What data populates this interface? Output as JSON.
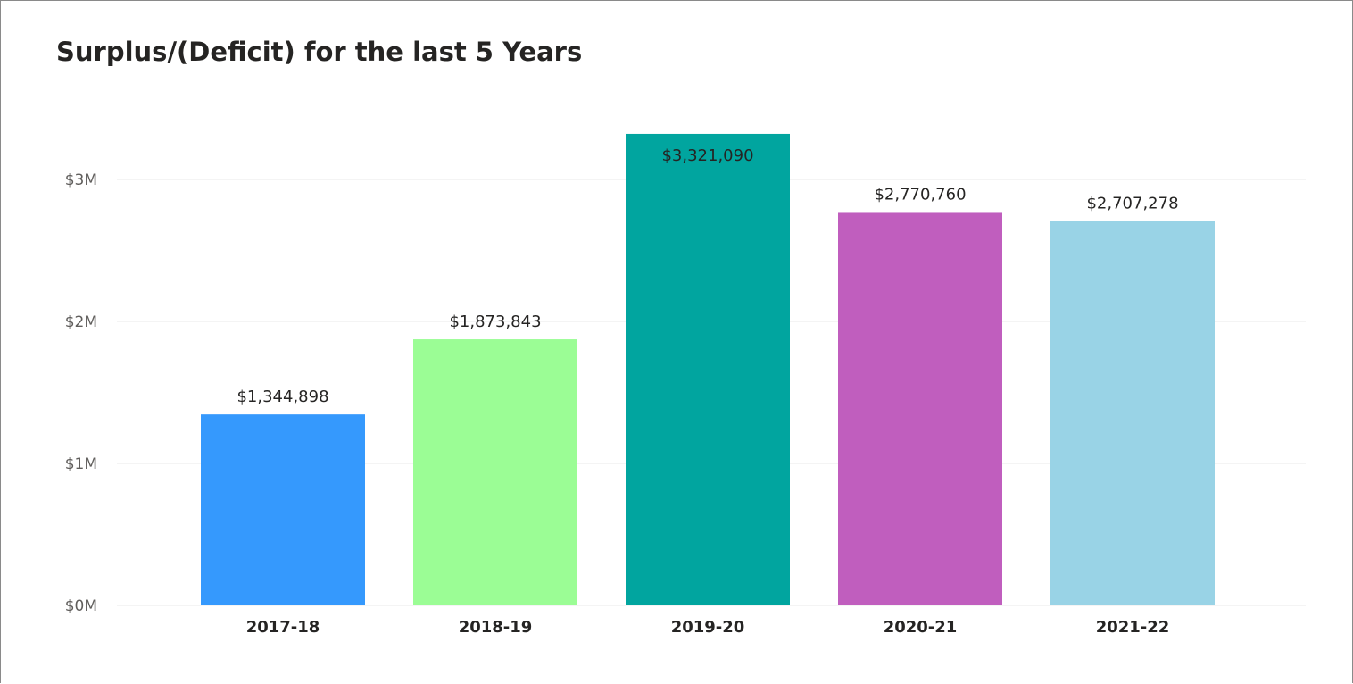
{
  "chart_data": {
    "type": "bar",
    "title": "Surplus/(Deficit) for the last 5 Years",
    "xlabel": "",
    "ylabel": "",
    "categories": [
      "2017-18",
      "2018-19",
      "2019-20",
      "2020-21",
      "2021-22"
    ],
    "values": [
      1344898,
      1873843,
      3321090,
      2770760,
      2707278
    ],
    "data_labels": [
      "$1,344,898",
      "$1,873,843",
      "$3,321,090",
      "$2,770,760",
      "$2,707,278"
    ],
    "bar_colors": [
      "#3599fd",
      "#9bfd95",
      "#01a59f",
      "#c05ebe",
      "#99d3e6"
    ],
    "ylim": [
      0,
      3000000
    ],
    "y_ticks": [
      {
        "value": 0,
        "label": "$0M"
      },
      {
        "value": 1000000,
        "label": "$1M"
      },
      {
        "value": 2000000,
        "label": "$2M"
      },
      {
        "value": 3000000,
        "label": "$3M"
      }
    ],
    "grid": true,
    "legend": "none",
    "gridline_color": "#eaeaea"
  }
}
